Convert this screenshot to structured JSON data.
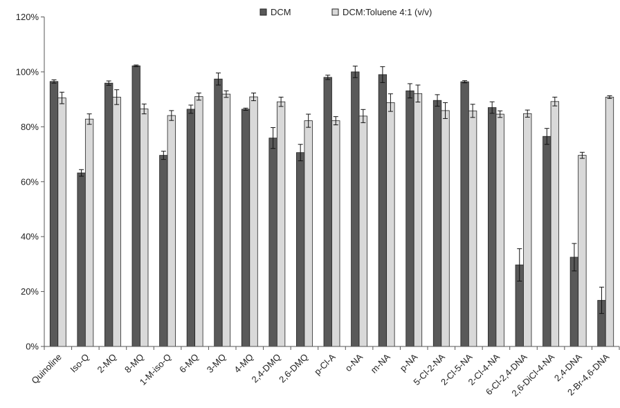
{
  "chart_data": {
    "type": "bar",
    "title": "",
    "xlabel": "",
    "ylabel": "",
    "ylim": [
      0,
      120
    ],
    "y_ticks": [
      "0%",
      "20%",
      "40%",
      "60%",
      "80%",
      "100%",
      "120%"
    ],
    "y_tick_values": [
      0,
      20,
      40,
      60,
      80,
      100,
      120
    ],
    "grid": false,
    "legend_position": "top",
    "categories": [
      "Quinoline",
      "Iso-Q",
      "2-MQ",
      "8-MQ",
      "1-M-iso-Q",
      "6-MQ",
      "3-MQ",
      "4-MQ",
      "2,4-DMQ",
      "2,6-DMQ",
      "p-Cl-A",
      "o-NA",
      "m-NA",
      "p-NA",
      "5-Cl-2-NA",
      "2-Cl-5-NA",
      "2-Cl-4-NA",
      "6-Cl-2,4-DNA",
      "2,6-DiCl-4-NA",
      "2,4-DNA",
      "2-Br-4,6-DNA"
    ],
    "series": [
      {
        "name": "DCM",
        "color": "#595959",
        "values": [
          96.5,
          63.2,
          95.9,
          102.2,
          69.6,
          86.4,
          97.4,
          86.4,
          75.9,
          70.6,
          98.0,
          100.0,
          99.0,
          93.1,
          89.6,
          96.4,
          87.0,
          29.7,
          76.5,
          32.5,
          16.8
        ],
        "errors": [
          0.6,
          1.2,
          0.8,
          0.3,
          1.5,
          1.5,
          2.2,
          0.4,
          3.8,
          3.0,
          0.8,
          2.1,
          2.9,
          2.6,
          2.1,
          0.4,
          2.1,
          5.9,
          2.9,
          5.0,
          4.8
        ]
      },
      {
        "name": "DCM:Toluene 4:1 (v/v)",
        "color": "#d9d9d9",
        "values": [
          90.5,
          82.8,
          90.8,
          86.5,
          84.1,
          91.0,
          91.9,
          90.9,
          89.1,
          82.2,
          82.2,
          83.9,
          88.8,
          92.1,
          85.9,
          85.8,
          84.6,
          84.8,
          89.2,
          69.6,
          90.8
        ],
        "errors": [
          2.1,
          1.9,
          2.7,
          1.8,
          1.8,
          1.3,
          1.2,
          1.4,
          1.7,
          2.4,
          1.5,
          2.4,
          3.2,
          3.1,
          2.9,
          2.4,
          1.2,
          1.3,
          1.6,
          1.1,
          0.5
        ]
      }
    ]
  }
}
